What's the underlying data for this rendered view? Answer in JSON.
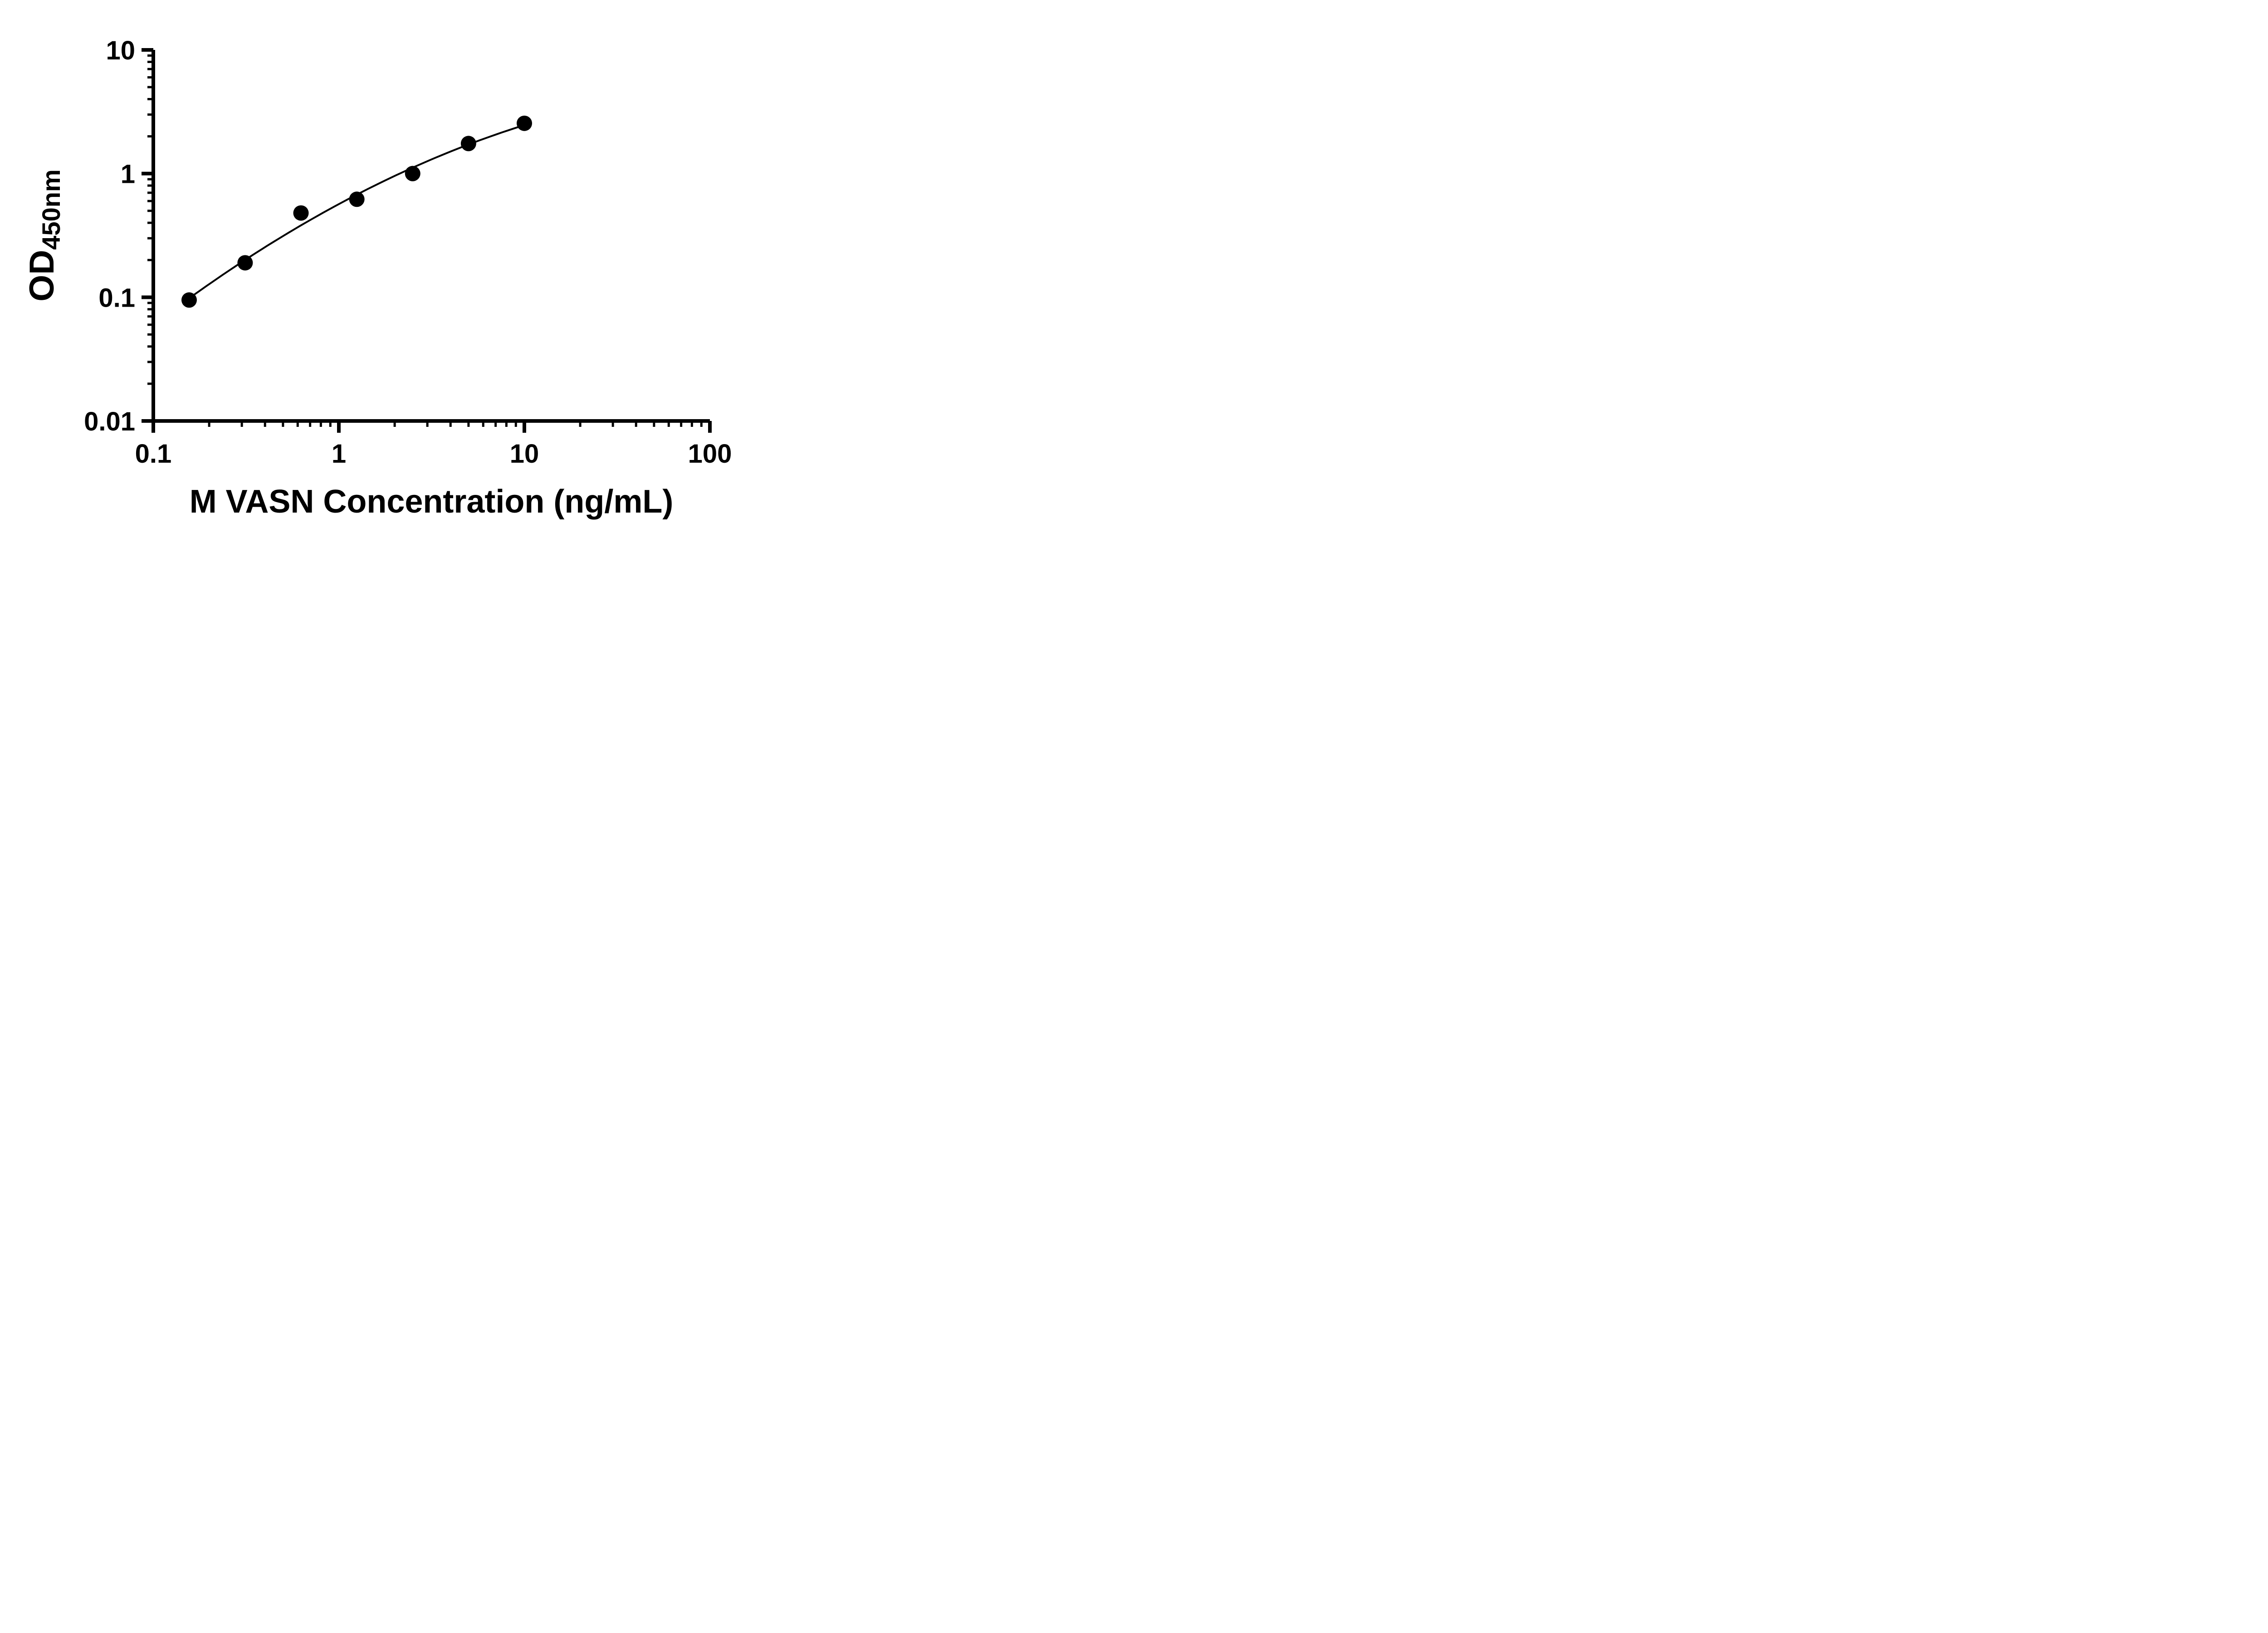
{
  "page": {
    "background_color": "#ffffff"
  },
  "chart_data": {
    "type": "scatter",
    "title": "",
    "xlabel": "M VASN Concentration (ng/mL)",
    "ylabel_main": "OD",
    "ylabel_sub": "450nm",
    "x_scale": "log",
    "y_scale": "log",
    "xlim": [
      0.1,
      100
    ],
    "ylim": [
      0.01,
      10
    ],
    "x_ticks": [
      0.1,
      1,
      10,
      100
    ],
    "x_tick_labels": [
      "0.1",
      "1",
      "10",
      "100"
    ],
    "y_ticks": [
      0.01,
      0.1,
      1,
      10
    ],
    "y_tick_labels": [
      "0.01",
      "0.1",
      "1",
      "10"
    ],
    "grid": false,
    "legend": false,
    "points": {
      "x": [
        0.156,
        0.3125,
        0.625,
        1.25,
        2.5,
        5,
        10
      ],
      "y": [
        0.095,
        0.19,
        0.48,
        0.62,
        1.0,
        1.75,
        2.55
      ]
    },
    "trend_line": true,
    "marker_shape": "filled-circle",
    "marker_color": "#000000",
    "line_color": "#000000",
    "axis_color": "#000000",
    "text_color": "#000000"
  }
}
